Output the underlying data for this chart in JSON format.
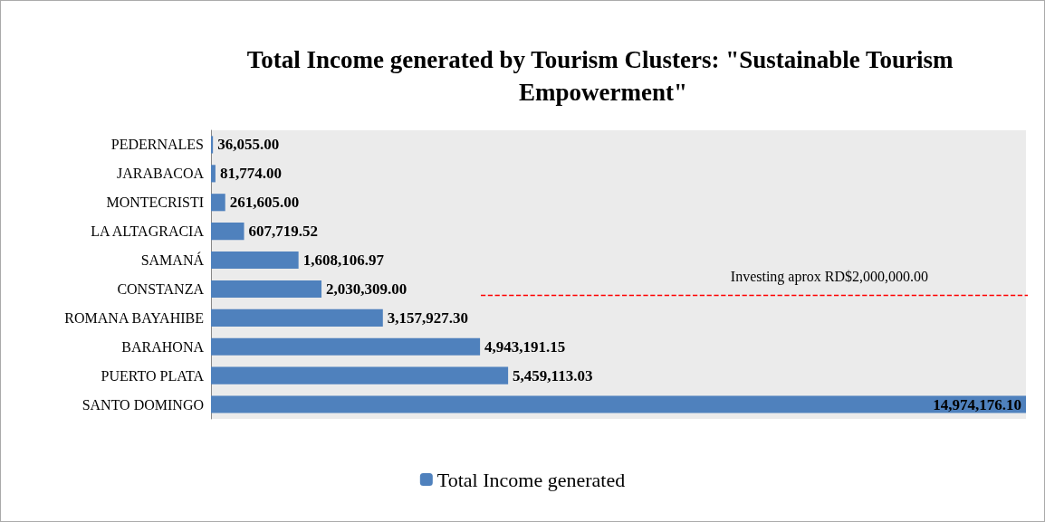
{
  "chart_data": {
    "type": "bar",
    "orientation": "horizontal",
    "title": "Total Income generated by Tourism Clusters: \"Sustainable Tourism Empowerment\"",
    "categories": [
      "PEDERNALES",
      "JARABACOA",
      "MONTECRISTI",
      "LA ALTAGRACIA",
      "SAMANÁ",
      "CONSTANZA",
      "ROMANA BAYAHIBE",
      "BARAHONA",
      "PUERTO PLATA",
      "SANTO DOMINGO"
    ],
    "series": [
      {
        "name": "Total Income generated",
        "color": "#4f81bd",
        "values": [
          36055.0,
          81774.0,
          261605.0,
          607719.52,
          1608106.97,
          2030309.0,
          3157927.3,
          4943191.15,
          5459113.03,
          14974176.1
        ],
        "value_labels": [
          "36,055.00",
          "81,774.00",
          "261,605.00",
          "607,719.52",
          "1,608,106.97",
          "2,030,309.00",
          "3,157,927.30",
          "4,943,191.15",
          "5,459,113.03",
          "14,974,176.10"
        ]
      }
    ],
    "ref_lines": [
      {
        "axis": "y",
        "value": "CONSTANZA",
        "label": "Investing aprox RD$2,000,000.00",
        "color": "#ff0000",
        "line_style": "dashed"
      }
    ],
    "legend": "bottom"
  }
}
